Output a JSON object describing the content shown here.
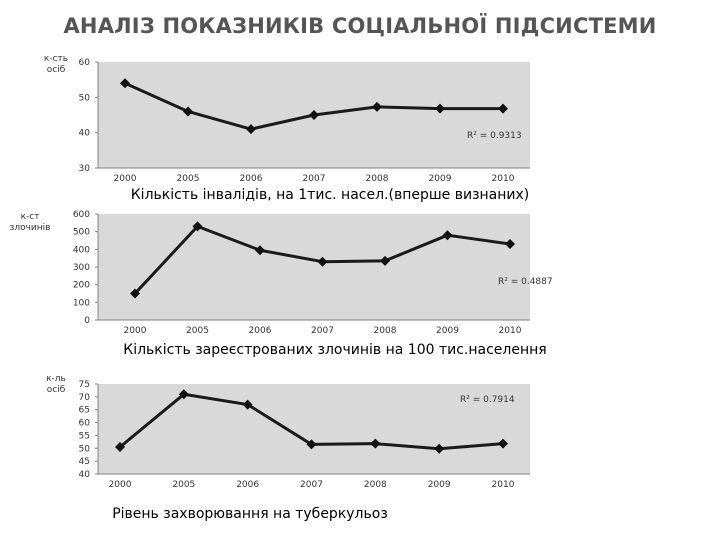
{
  "page_title": "АНАЛІЗ ПОКАЗНИКІВ СОЦІАЛЬНОЇ ПІДСИСТЕМИ",
  "chart_data": [
    {
      "type": "line",
      "title": "Кількість інвалідів, на 1тис. насел.(вперше визнаних)",
      "ylabel": "к-сть осіб",
      "categories": [
        "2000",
        "2005",
        "2006",
        "2007",
        "2008",
        "2009",
        "2010"
      ],
      "values": [
        54,
        46,
        41,
        45,
        47.3,
        46.8,
        46.8
      ],
      "ylim": [
        30,
        60
      ],
      "yticks": [
        30,
        40,
        50,
        60
      ],
      "r2_label": "R² = 0.9313",
      "grid": false,
      "plot_fill": "#d9d9d9"
    },
    {
      "type": "line",
      "title": "Кількість зареєстрованих злочинів на 100 тис.населення",
      "ylabel": "к-ст злочинів",
      "categories": [
        "2000",
        "2005",
        "2006",
        "2007",
        "2008",
        "2009",
        "2010"
      ],
      "values": [
        150,
        530,
        395,
        330,
        335,
        480,
        430
      ],
      "ylim": [
        0,
        600
      ],
      "yticks": [
        0,
        100,
        200,
        300,
        400,
        500,
        600
      ],
      "r2_label": "R² = 0.4887",
      "grid": false,
      "plot_fill": "#d9d9d9"
    },
    {
      "type": "line",
      "title": "Рівень захворювання на туберкульоз",
      "ylabel": "к-ль осіб",
      "categories": [
        "2000",
        "2005",
        "2006",
        "2007",
        "2008",
        "2009",
        "2010"
      ],
      "values": [
        50.5,
        71,
        67,
        51.5,
        51.8,
        49.8,
        51.8
      ],
      "ylim": [
        40,
        75
      ],
      "yticks": [
        40,
        45,
        50,
        55,
        60,
        65,
        70,
        75
      ],
      "r2_label": "R² = 0.7914",
      "grid": false,
      "plot_fill": "#d9d9d9"
    }
  ]
}
